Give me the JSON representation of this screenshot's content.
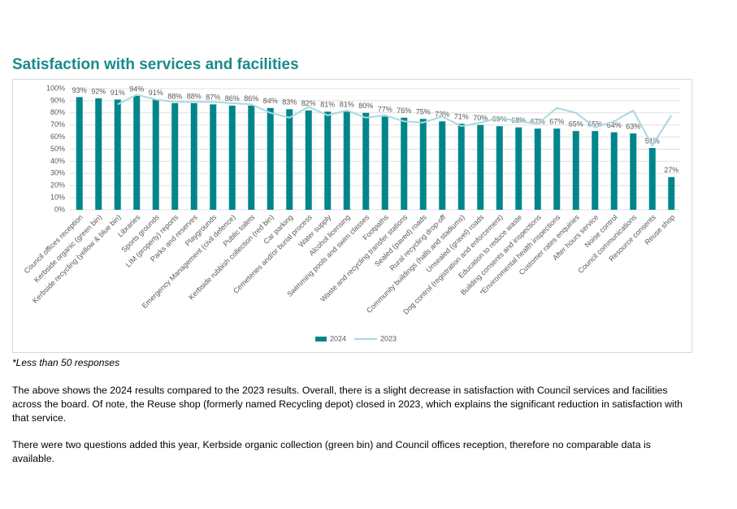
{
  "chart_data": {
    "type": "bar-line",
    "title": "Satisfaction with services and facilities",
    "categories": [
      "Council offices reception",
      "Kerbside organic (green bin)",
      "Kerbside recycling (yellow & blue bin)",
      "Libraries",
      "Sports grounds",
      "LIM (property) reports",
      "Parks and reserves",
      "Playgrounds",
      "Emergency Management (civil defence)",
      "Public toilets",
      "Kerbside rubbish collection (red bin)",
      "Car parking",
      "Cemeteries and/or burial process",
      "Water supply",
      "Alcohol licensing",
      "Swimming pools and swim classes",
      "Footpaths",
      "Waste and recycling transfer stations",
      "Sealed (paved) roads",
      "Rural recycling drop-off",
      "Community buildings (halls and stadiums)",
      "Unsealed (gravel) roads",
      "Dog control (registration and enforcement)",
      "Education to reduce waste",
      "Building consents and inspections",
      "*Environmental health inspections",
      "Customer rates enquiries",
      "After hours service",
      "Noise control",
      "Council communications",
      "Resource consents",
      "Reuse shop"
    ],
    "series": [
      {
        "name": "2024",
        "type": "bar",
        "color": "#00868a",
        "values": [
          93,
          92,
          91,
          94,
          91,
          88,
          88,
          87,
          86,
          86,
          84,
          83,
          82,
          81,
          81,
          80,
          77,
          76,
          75,
          73,
          71,
          70,
          69,
          68,
          67,
          67,
          65,
          65,
          64,
          63,
          51,
          27
        ],
        "value_labels": [
          "93%",
          "92%",
          "91%",
          "94%",
          "91%",
          "88%",
          "88%",
          "87%",
          "86%",
          "86%",
          "84%",
          "83%",
          "82%",
          "81%",
          "81%",
          "80%",
          "77%",
          "76%",
          "75%",
          "73%",
          "71%",
          "70%",
          "69%",
          "68%",
          "67%",
          "67%",
          "65%",
          "65%",
          "64%",
          "63%",
          "51%",
          "27%"
        ]
      },
      {
        "name": "2023",
        "type": "line",
        "color": "#a9d8e0",
        "values": [
          null,
          null,
          87,
          95,
          91,
          89,
          89,
          89,
          88,
          87,
          80,
          76,
          85,
          78,
          82,
          76,
          78,
          73,
          72,
          77,
          69,
          72,
          76,
          73,
          71,
          84,
          80,
          68,
          73,
          82,
          53,
          78
        ]
      }
    ],
    "ylim": [
      0,
      100
    ],
    "yticks": [
      {
        "value": 0,
        "label": "0%"
      },
      {
        "value": 10,
        "label": "10%"
      },
      {
        "value": 20,
        "label": "20%"
      },
      {
        "value": 30,
        "label": "30%"
      },
      {
        "value": 40,
        "label": "40%"
      },
      {
        "value": 50,
        "label": "50%"
      },
      {
        "value": 60,
        "label": "60%"
      },
      {
        "value": 70,
        "label": "70%"
      },
      {
        "value": 80,
        "label": "80%"
      },
      {
        "value": 90,
        "label": "90%"
      },
      {
        "value": 100,
        "label": "100%"
      }
    ],
    "grid": true,
    "legend": "bottom"
  },
  "note": "*Less than 50 responses",
  "paragraphs": [
    "The above shows the 2024 results compared to the 2023 results. Overall, there is a slight decrease in satisfaction with Council services and facilities across the board. Of note, the Reuse shop (formerly named Recycling depot) closed in 2023, which explains the significant reduction in satisfaction with that service.",
    "There were two questions added this year, Kerbside organic collection (green bin) and Council offices reception, therefore no comparable data is available."
  ]
}
